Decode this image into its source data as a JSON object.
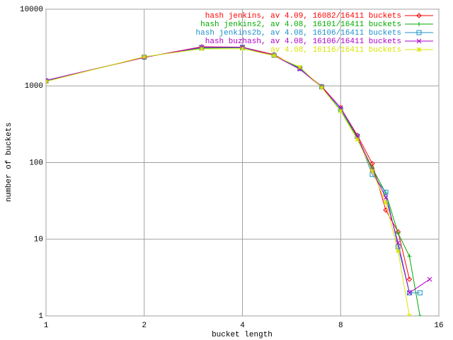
{
  "chart_data": {
    "type": "line",
    "xlabel": "bucket length",
    "ylabel": "number of buckets",
    "xscale": "log2",
    "yscale": "log",
    "grid": true,
    "legend": "top right",
    "xlim": [
      1,
      16
    ],
    "xticks": [
      1,
      2,
      4,
      8,
      16
    ],
    "ylim": [
      1,
      10000
    ],
    "yticks": [
      1,
      10,
      100,
      1000,
      10000
    ],
    "series": [
      {
        "name": "hash jenkins, av 4.09, 16082/16411 buckets",
        "color": "#ff0000",
        "marker": "diamond",
        "x": [
          1,
          2,
          3,
          4,
          5,
          6,
          7,
          8,
          9,
          10,
          11,
          12,
          13
        ],
        "values": [
          1170,
          2350,
          3240,
          3200,
          2560,
          1680,
          985,
          520,
          227,
          97,
          24,
          12.5,
          3
        ]
      },
      {
        "name": "hash jenkins2, av 4.08, 16101/16411 buckets",
        "color": "#00aa00",
        "marker": "plus",
        "x": [
          1,
          2,
          3,
          4,
          5,
          6,
          7,
          8,
          9,
          10,
          11,
          12,
          13,
          14
        ],
        "values": [
          1150,
          2380,
          3100,
          3150,
          2500,
          1720,
          960,
          480,
          210,
          85,
          40,
          12,
          6,
          1
        ]
      },
      {
        "name": "hash jenkins2b, av 4.08, 16106/16411 buckets",
        "color": "#1e90c8",
        "marker": "square",
        "x": [
          1,
          2,
          3,
          4,
          5,
          6,
          7,
          8,
          9,
          10,
          11,
          12,
          13,
          14
        ],
        "values": [
          1160,
          2370,
          3150,
          3180,
          2500,
          1690,
          970,
          490,
          220,
          70,
          41,
          8,
          2,
          2
        ]
      },
      {
        "name": "hash buzhash, av 4.08, 16106/16411 buckets",
        "color": "#b000c8",
        "marker": "cross",
        "x": [
          1,
          2,
          3,
          4,
          5,
          6,
          7,
          8,
          9,
          10,
          11,
          12,
          13,
          15
        ],
        "values": [
          1180,
          2360,
          3200,
          3200,
          2480,
          1650,
          960,
          520,
          220,
          80,
          35,
          9,
          2,
          3
        ]
      },
      {
        "name": "av 4.08, 16116/16411 buckets",
        "color": "#d8e600",
        "marker": "star",
        "x": [
          1,
          2,
          3,
          4,
          5,
          6,
          7,
          8,
          9,
          10,
          11,
          12,
          13
        ],
        "values": [
          1140,
          2400,
          3050,
          3050,
          2480,
          1760,
          950,
          470,
          200,
          78,
          30,
          7,
          1
        ]
      }
    ]
  }
}
